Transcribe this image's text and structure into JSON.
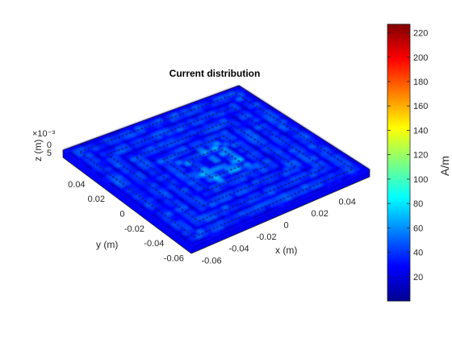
{
  "chart_data": {
    "type": "heatmap",
    "subtype": "3d-surface-current-density",
    "title": "Current distribution",
    "xlabel": "x (m)",
    "ylabel": "y (m)",
    "zlabel": "z (m)",
    "z_exponent_label": "×10⁻³",
    "xlim": [
      -0.065,
      0.065
    ],
    "ylim": [
      -0.065,
      0.065
    ],
    "zlim": [
      0,
      5
    ],
    "x_ticks": [
      "-0.06",
      "-0.04",
      "-0.02",
      "0",
      "0.02",
      "0.04"
    ],
    "y_ticks": [
      "-0.06",
      "-0.04",
      "-0.02",
      "0",
      "0.02",
      "0.04"
    ],
    "z_ticks": [
      "0",
      "5"
    ],
    "colorbar": {
      "label": "A/m",
      "colormap": "jet",
      "min": 0,
      "max": 227,
      "ticks": [
        "20",
        "40",
        "60",
        "80",
        "100",
        "120",
        "140",
        "160",
        "180",
        "200",
        "220"
      ]
    },
    "structure": "square spiral conductor on a flat substrate",
    "turns": 3,
    "values_range": [
      5,
      70
    ],
    "colors": {
      "background": "#ffffff",
      "axis": "#262626"
    }
  }
}
